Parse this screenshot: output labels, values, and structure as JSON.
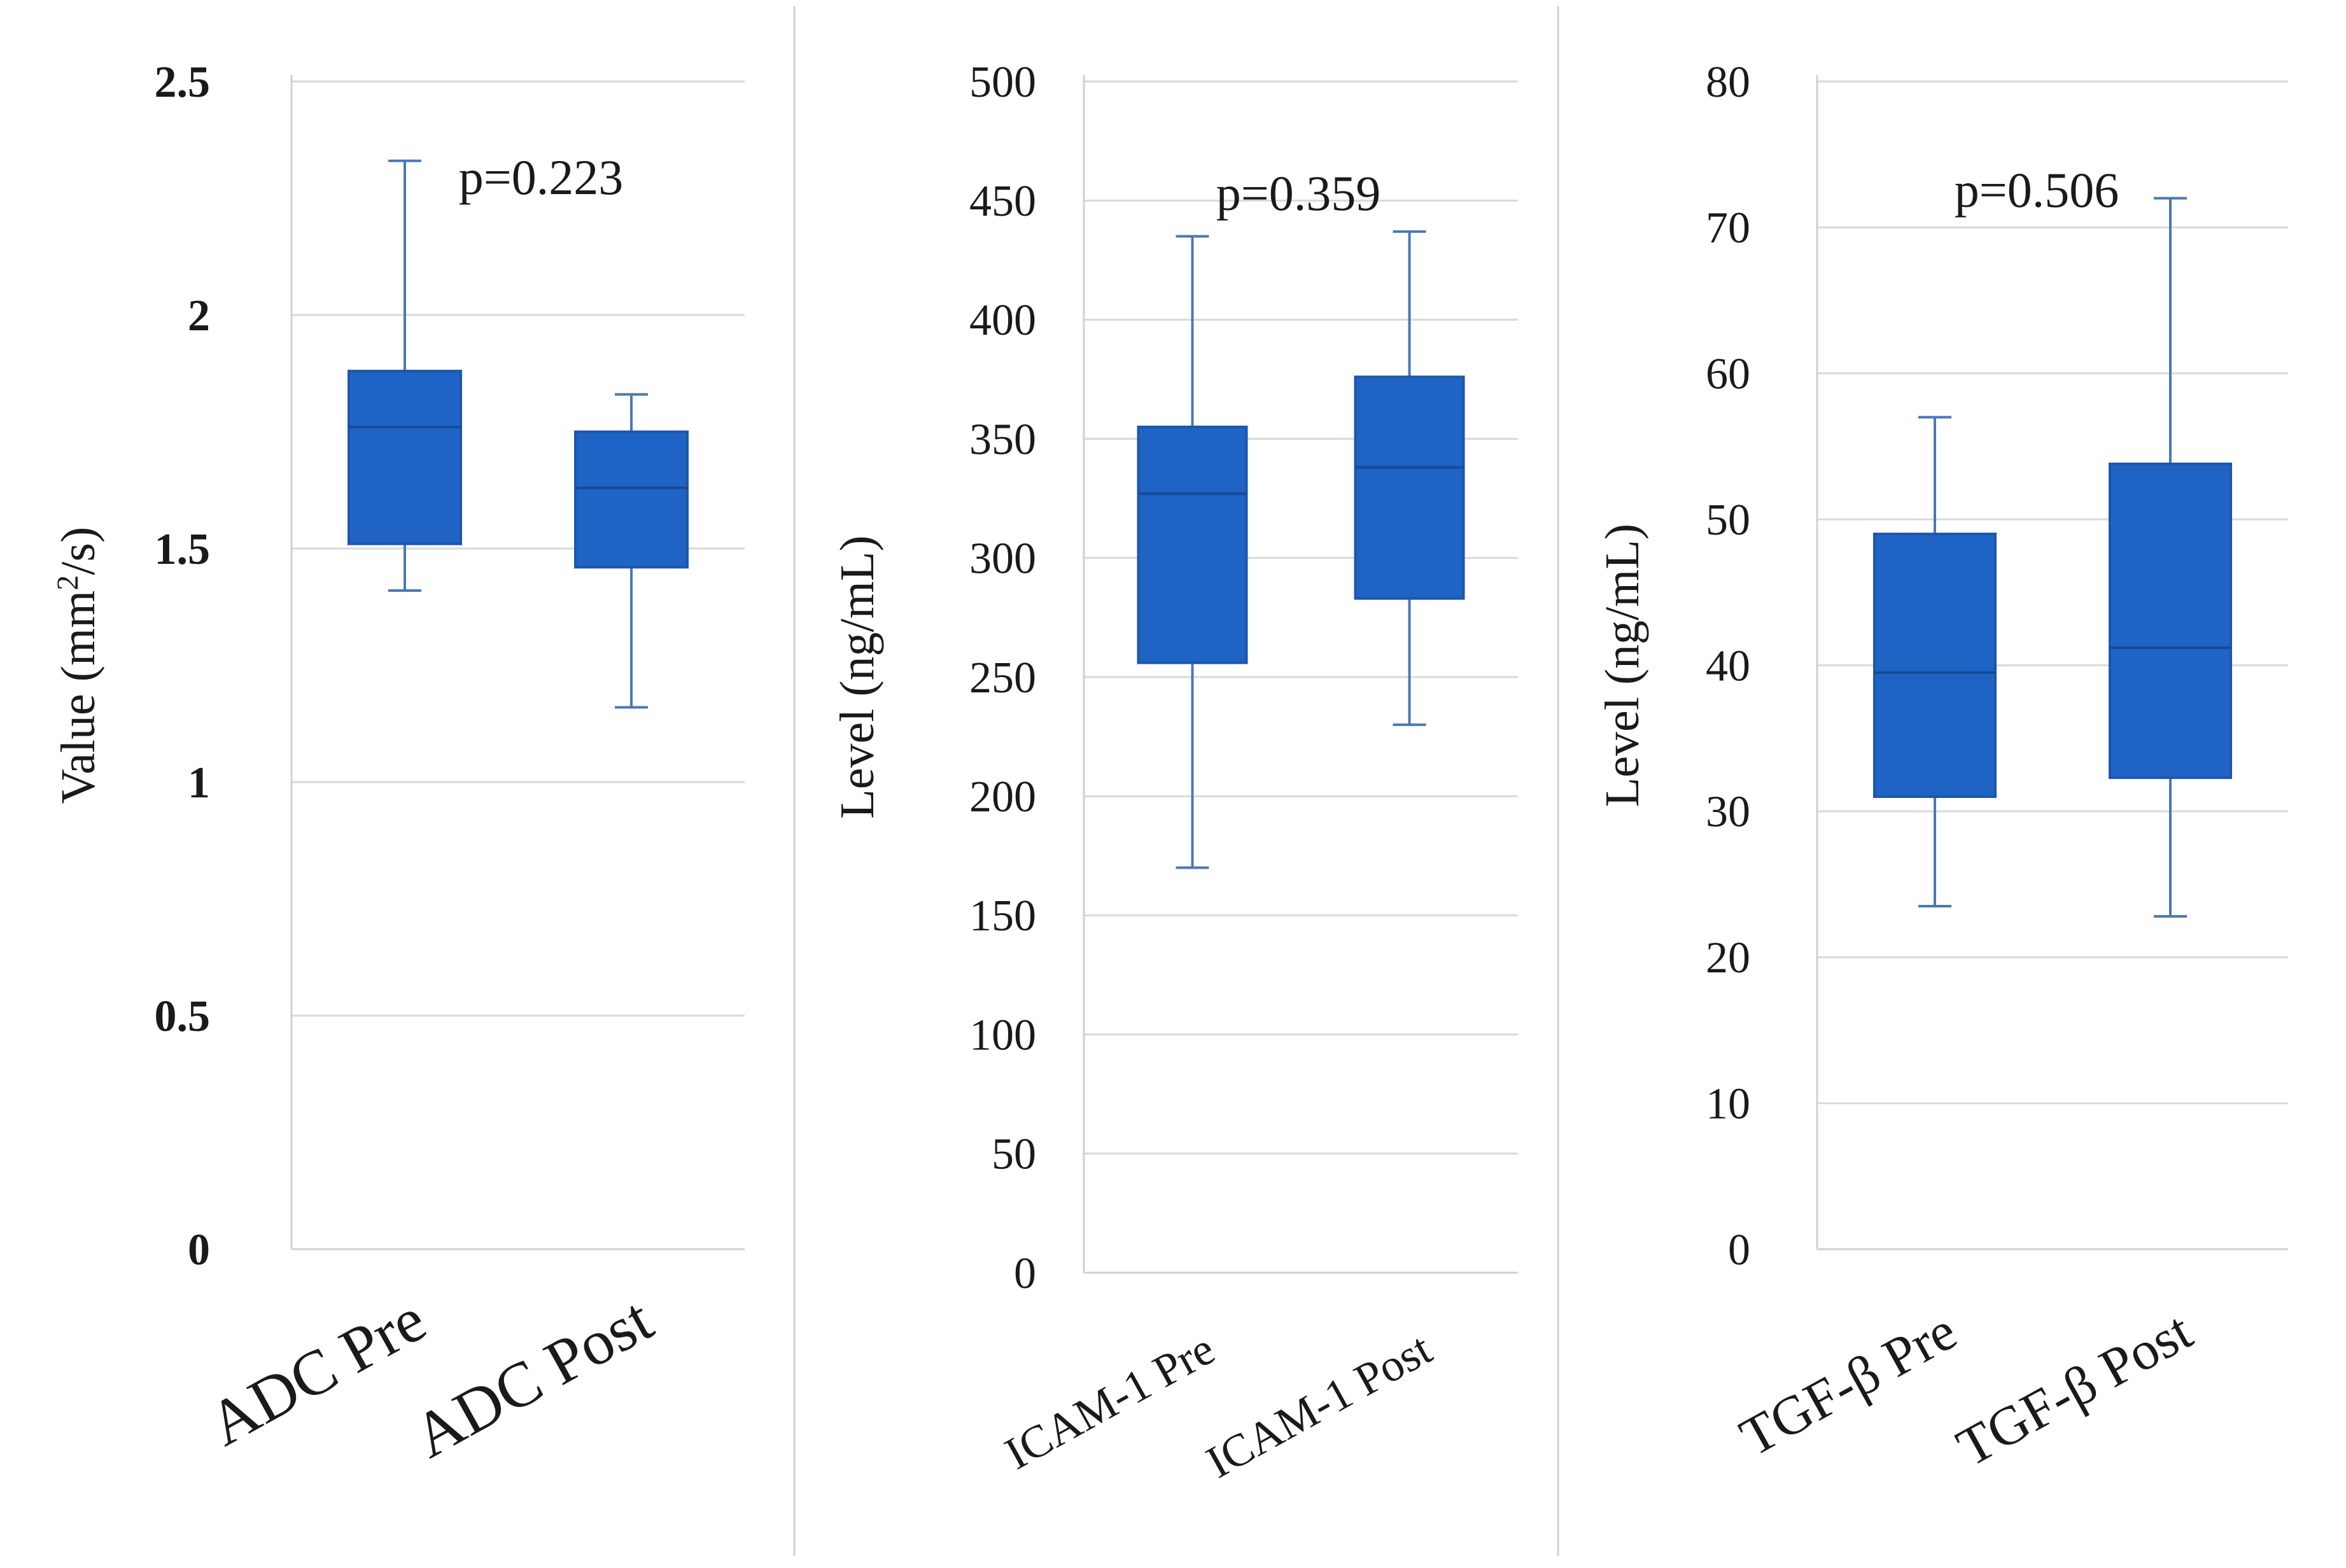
{
  "colors": {
    "box_fill": "#1f63c5",
    "box_edge": "#1c56ad",
    "median": "#174a95",
    "whisker": "#4a78b8",
    "grid": "#d9d9d9",
    "axis": "#d0d0d0",
    "divider": "#cfcfcf",
    "text": "#1a1a1a"
  },
  "chart_data": [
    {
      "type": "box",
      "ylabel": "Value (mm",
      "ylabel_sup": "2",
      "ylabel_end": "/s)",
      "ylim": [
        0,
        2.5
      ],
      "yticks": [
        "0",
        "0.5",
        "1",
        "1.5",
        "2",
        "2.5"
      ],
      "annotation": "p=0.223",
      "categories": [
        "ADC Pre",
        "ADC Post"
      ],
      "boxes": [
        {
          "name": "ADC Pre",
          "min": 1.41,
          "q1": 1.51,
          "median": 1.76,
          "q3": 1.88,
          "max": 2.33
        },
        {
          "name": "ADC Post",
          "min": 1.16,
          "q1": 1.46,
          "median": 1.63,
          "q3": 1.75,
          "max": 1.83
        }
      ]
    },
    {
      "type": "box",
      "ylabel": "Level (ng/mL)",
      "ylim": [
        0,
        500
      ],
      "yticks": [
        "0",
        "50",
        "100",
        "150",
        "200",
        "250",
        "300",
        "350",
        "400",
        "450",
        "500"
      ],
      "annotation": "p=0.359",
      "categories": [
        "ICAM-1 Pre",
        "ICAM-1 Post"
      ],
      "boxes": [
        {
          "name": "ICAM-1 Pre",
          "min": 170,
          "q1": 256,
          "median": 327,
          "q3": 355,
          "max": 435
        },
        {
          "name": "ICAM-1 Post",
          "min": 230,
          "q1": 283,
          "median": 338,
          "q3": 376,
          "max": 437
        }
      ]
    },
    {
      "type": "box",
      "ylabel": "Level  (ng/mL)",
      "ylim": [
        0,
        80
      ],
      "yticks": [
        "0",
        "10",
        "20",
        "30",
        "40",
        "50",
        "60",
        "70",
        "80"
      ],
      "annotation": "p=0.506",
      "categories": [
        "TGF-β Pre",
        "TGF-β Post"
      ],
      "boxes": [
        {
          "name": "TGF-β Pre",
          "min": 23.5,
          "q1": 31,
          "median": 39.5,
          "q3": 49,
          "max": 57
        },
        {
          "name": "TGF-β Post",
          "min": 22.8,
          "q1": 32.3,
          "median": 41.2,
          "q3": 53.8,
          "max": 72
        }
      ]
    }
  ]
}
